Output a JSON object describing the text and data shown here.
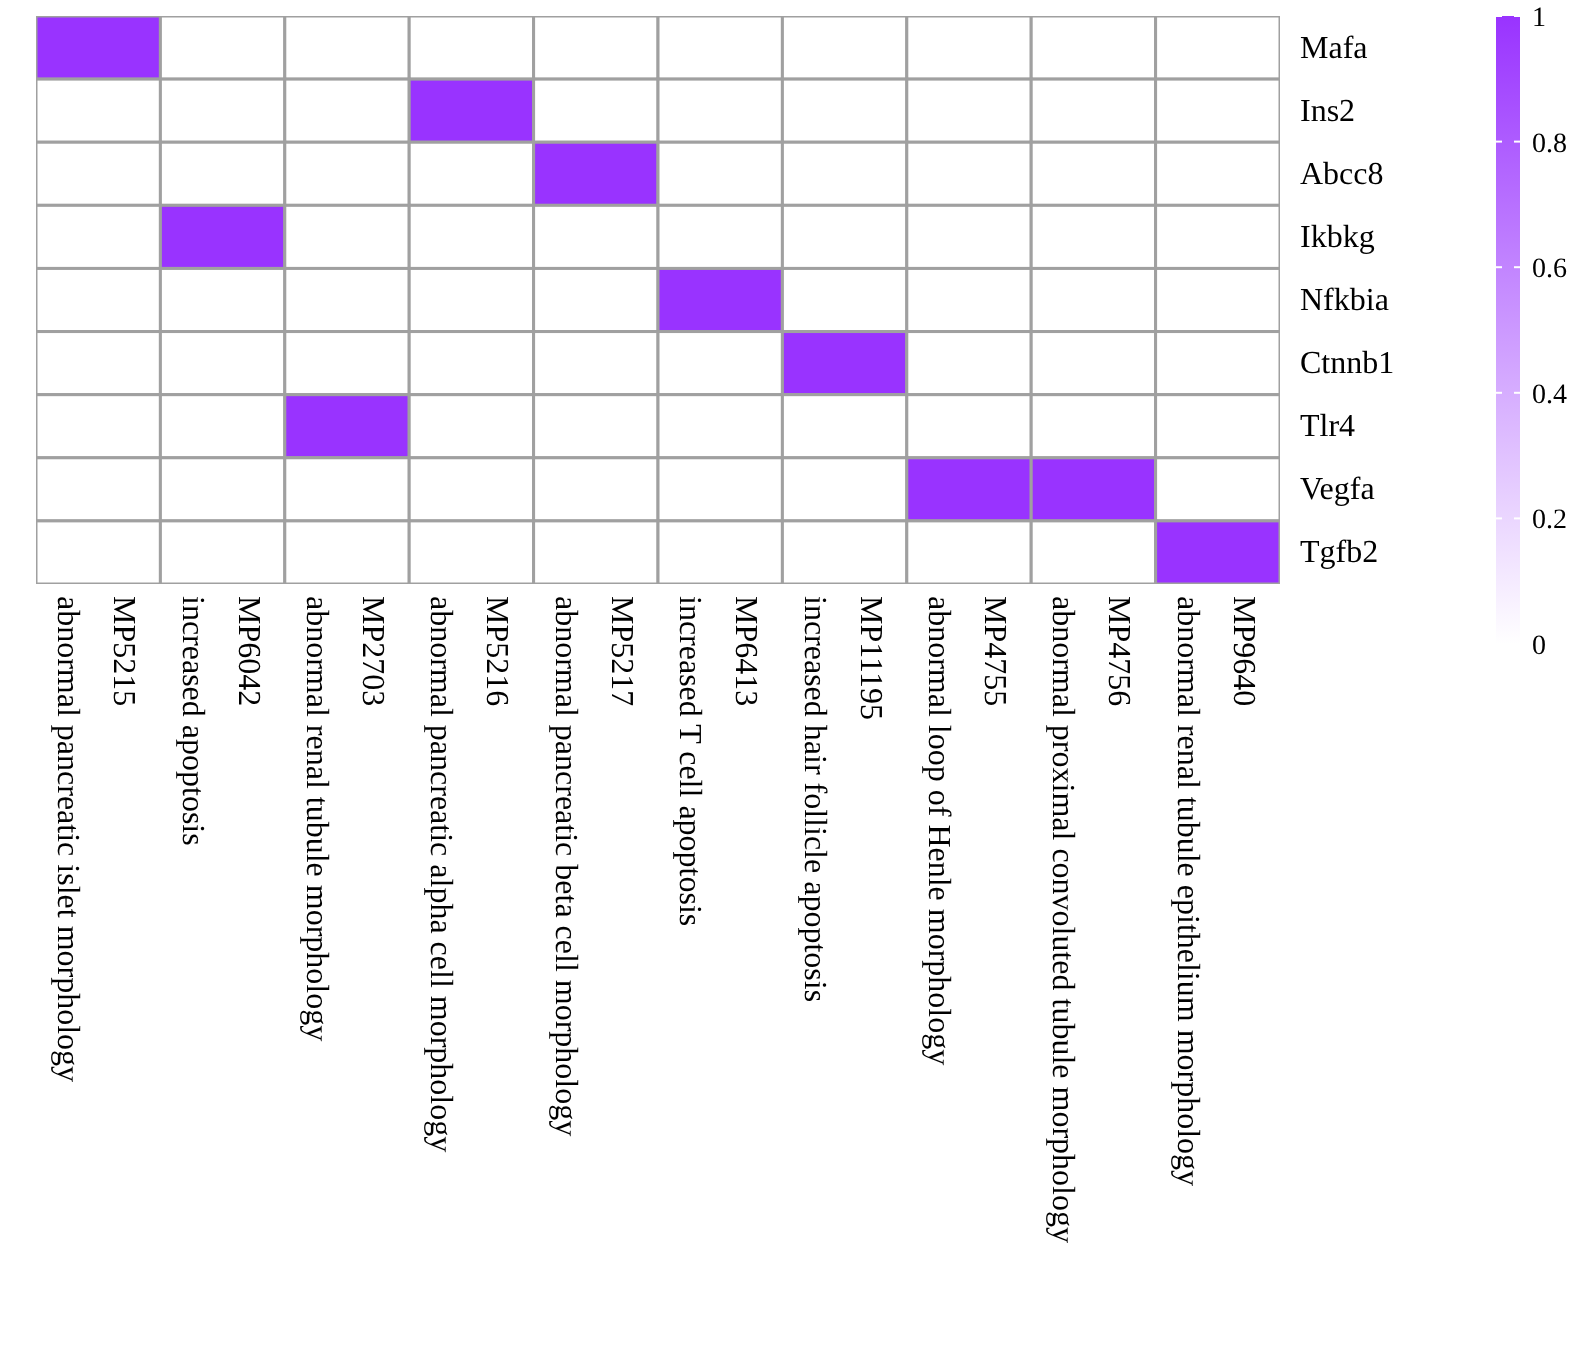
{
  "chart_data": {
    "type": "heatmap",
    "categories": [
      "MP5215\nabnormal pancreatic islet morphology",
      "MP6042\nincreased apoptosis",
      "MP2703\nabnormal renal tubule morphology",
      "MP5216\nabnormal pancreatic alpha cell morphology",
      "MP5217\nabnormal pancreatic beta cell morphology",
      "MP6413\nincreased T cell apoptosis",
      "MP11195\nincreased hair follicle apoptosis",
      "MP4755\nabnormal loop of Henle morphology",
      "MP4756\nabnormal proximal convoluted tubule morphology",
      "MP9640\nabnormal renal tubule epithelium morphology"
    ],
    "y_categories": [
      "Mafa",
      "Ins2",
      "Abcc8",
      "Ikbkg",
      "Nfkbia",
      "Ctnnb1",
      "Tlr4",
      "Vegfa",
      "Tgfb2"
    ],
    "cells": [
      [
        1,
        0,
        0,
        0,
        0,
        0,
        0,
        0,
        0,
        0
      ],
      [
        0,
        0,
        0,
        1,
        0,
        0,
        0,
        0,
        0,
        0
      ],
      [
        0,
        0,
        0,
        0,
        1,
        0,
        0,
        0,
        0,
        0
      ],
      [
        0,
        1,
        0,
        0,
        0,
        0,
        0,
        0,
        0,
        0
      ],
      [
        0,
        0,
        0,
        0,
        0,
        1,
        0,
        0,
        0,
        0
      ],
      [
        0,
        0,
        0,
        0,
        0,
        0,
        1,
        0,
        0,
        0
      ],
      [
        0,
        0,
        1,
        0,
        0,
        0,
        0,
        0,
        0,
        0
      ],
      [
        0,
        0,
        0,
        0,
        0,
        0,
        0,
        1,
        1,
        0
      ],
      [
        0,
        0,
        0,
        0,
        0,
        0,
        0,
        0,
        0,
        1
      ]
    ],
    "color": "#9933ff",
    "clim": [
      0,
      1
    ],
    "cticks": [
      0,
      0.2,
      0.4,
      0.6,
      0.8,
      1
    ]
  }
}
